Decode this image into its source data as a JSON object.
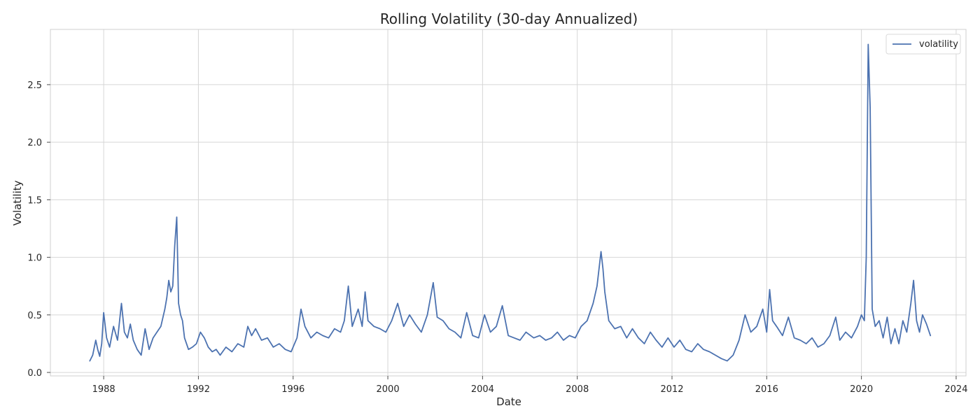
{
  "chart_data": {
    "type": "line",
    "title": "Rolling Volatility (30-day Annualized)",
    "xlabel": "Date",
    "ylabel": "Volatility",
    "x_axis_type": "date",
    "xlim": [
      "1985-10-01",
      "2024-06-01"
    ],
    "ylim": [
      -0.03,
      2.98
    ],
    "xticks": [
      "1988",
      "1992",
      "1996",
      "2000",
      "2004",
      "2008",
      "2012",
      "2016",
      "2020",
      "2024"
    ],
    "yticks": [
      "0.0",
      "0.5",
      "1.0",
      "1.5",
      "2.0",
      "2.5"
    ],
    "grid": true,
    "legend_position": "top-right",
    "series_color": "#4c72b0",
    "series": [
      {
        "name": "volatility",
        "x": [
          "1987-06-01",
          "1987-07-15",
          "1987-09-01",
          "1987-10-01",
          "1987-11-01",
          "1987-12-01",
          "1988-01-01",
          "1988-02-15",
          "1988-04-01",
          "1988-06-01",
          "1988-08-01",
          "1988-10-01",
          "1988-11-15",
          "1989-01-01",
          "1989-02-15",
          "1989-04-01",
          "1989-06-01",
          "1989-08-01",
          "1989-10-01",
          "1989-12-01",
          "1990-02-01",
          "1990-04-01",
          "1990-06-01",
          "1990-08-01",
          "1990-09-01",
          "1990-10-01",
          "1990-11-01",
          "1990-12-01",
          "1991-01-01",
          "1991-02-01",
          "1991-03-01",
          "1991-04-01",
          "1991-05-01",
          "1991-06-01",
          "1991-08-01",
          "1991-10-01",
          "1991-12-01",
          "1992-02-01",
          "1992-04-01",
          "1992-06-01",
          "1992-08-01",
          "1992-10-01",
          "1992-12-01",
          "1993-03-01",
          "1993-06-01",
          "1993-09-01",
          "1993-12-01",
          "1994-02-01",
          "1994-04-01",
          "1994-06-01",
          "1994-09-01",
          "1994-12-01",
          "1995-03-01",
          "1995-06-01",
          "1995-09-01",
          "1995-12-01",
          "1996-03-01",
          "1996-05-01",
          "1996-07-01",
          "1996-10-01",
          "1997-01-01",
          "1997-04-01",
          "1997-07-01",
          "1997-10-01",
          "1998-01-01",
          "1998-03-01",
          "1998-05-01",
          "1998-07-01",
          "1998-10-01",
          "1998-12-01",
          "1999-01-15",
          "1999-03-01",
          "1999-06-01",
          "1999-09-01",
          "1999-12-01",
          "2000-03-01",
          "2000-06-01",
          "2000-09-01",
          "2000-12-01",
          "2001-03-01",
          "2001-06-01",
          "2001-09-01",
          "2001-12-01",
          "2002-02-01",
          "2002-05-01",
          "2002-08-01",
          "2002-11-01",
          "2003-02-01",
          "2003-05-01",
          "2003-08-01",
          "2003-11-01",
          "2004-02-01",
          "2004-05-01",
          "2004-08-01",
          "2004-11-01",
          "2005-02-01",
          "2005-05-01",
          "2005-08-01",
          "2005-11-01",
          "2006-03-01",
          "2006-06-01",
          "2006-09-01",
          "2006-12-01",
          "2007-03-01",
          "2007-06-01",
          "2007-09-01",
          "2007-12-01",
          "2008-03-01",
          "2008-06-01",
          "2008-09-01",
          "2008-11-01",
          "2009-01-01",
          "2009-02-01",
          "2009-03-01",
          "2009-05-01",
          "2009-08-01",
          "2009-11-01",
          "2010-02-01",
          "2010-05-01",
          "2010-08-01",
          "2010-11-01",
          "2011-02-01",
          "2011-05-01",
          "2011-08-01",
          "2011-11-01",
          "2012-02-01",
          "2012-05-01",
          "2012-08-01",
          "2012-11-01",
          "2013-02-01",
          "2013-05-01",
          "2013-08-01",
          "2013-11-01",
          "2014-02-01",
          "2014-05-01",
          "2014-08-01",
          "2014-11-01",
          "2015-02-01",
          "2015-05-01",
          "2015-08-01",
          "2015-11-01",
          "2016-01-01",
          "2016-02-15",
          "2016-04-01",
          "2016-06-01",
          "2016-09-01",
          "2016-12-01",
          "2017-03-01",
          "2017-06-01",
          "2017-09-01",
          "2017-12-01",
          "2018-03-01",
          "2018-06-01",
          "2018-09-01",
          "2018-12-01",
          "2019-02-01",
          "2019-05-01",
          "2019-08-01",
          "2019-11-01",
          "2020-01-01",
          "2020-02-15",
          "2020-03-15",
          "2020-04-15",
          "2020-05-15",
          "2020-06-15",
          "2020-08-01",
          "2020-10-01",
          "2020-12-01",
          "2021-02-01",
          "2021-04-01",
          "2021-06-01",
          "2021-08-01",
          "2021-10-01",
          "2021-12-01",
          "2022-02-01",
          "2022-03-15",
          "2022-05-01",
          "2022-06-15",
          "2022-08-01",
          "2022-10-01",
          "2022-12-01"
        ],
        "values": [
          0.1,
          0.15,
          0.28,
          0.2,
          0.14,
          0.25,
          0.52,
          0.3,
          0.22,
          0.4,
          0.28,
          0.6,
          0.35,
          0.3,
          0.42,
          0.28,
          0.2,
          0.15,
          0.38,
          0.2,
          0.3,
          0.35,
          0.4,
          0.55,
          0.65,
          0.8,
          0.7,
          0.75,
          1.1,
          1.35,
          0.6,
          0.5,
          0.45,
          0.3,
          0.2,
          0.22,
          0.25,
          0.35,
          0.3,
          0.22,
          0.18,
          0.2,
          0.15,
          0.22,
          0.18,
          0.25,
          0.22,
          0.4,
          0.32,
          0.38,
          0.28,
          0.3,
          0.22,
          0.25,
          0.2,
          0.18,
          0.3,
          0.55,
          0.4,
          0.3,
          0.35,
          0.32,
          0.3,
          0.38,
          0.35,
          0.45,
          0.75,
          0.4,
          0.55,
          0.4,
          0.7,
          0.45,
          0.4,
          0.38,
          0.35,
          0.45,
          0.6,
          0.4,
          0.5,
          0.42,
          0.35,
          0.5,
          0.78,
          0.48,
          0.45,
          0.38,
          0.35,
          0.3,
          0.52,
          0.32,
          0.3,
          0.5,
          0.35,
          0.4,
          0.58,
          0.32,
          0.3,
          0.28,
          0.35,
          0.3,
          0.32,
          0.28,
          0.3,
          0.35,
          0.28,
          0.32,
          0.3,
          0.4,
          0.45,
          0.6,
          0.75,
          1.05,
          0.9,
          0.7,
          0.45,
          0.38,
          0.4,
          0.3,
          0.38,
          0.3,
          0.25,
          0.35,
          0.28,
          0.22,
          0.3,
          0.22,
          0.28,
          0.2,
          0.18,
          0.25,
          0.2,
          0.18,
          0.15,
          0.12,
          0.1,
          0.15,
          0.28,
          0.5,
          0.35,
          0.4,
          0.55,
          0.35,
          0.72,
          0.45,
          0.4,
          0.32,
          0.48,
          0.3,
          0.28,
          0.25,
          0.3,
          0.22,
          0.25,
          0.32,
          0.48,
          0.28,
          0.35,
          0.3,
          0.4,
          0.5,
          0.45,
          1.0,
          2.85,
          2.3,
          0.55,
          0.4,
          0.45,
          0.3,
          0.48,
          0.25,
          0.38,
          0.25,
          0.45,
          0.35,
          0.6,
          0.8,
          0.45,
          0.35,
          0.5,
          0.42,
          0.32
        ]
      }
    ]
  }
}
